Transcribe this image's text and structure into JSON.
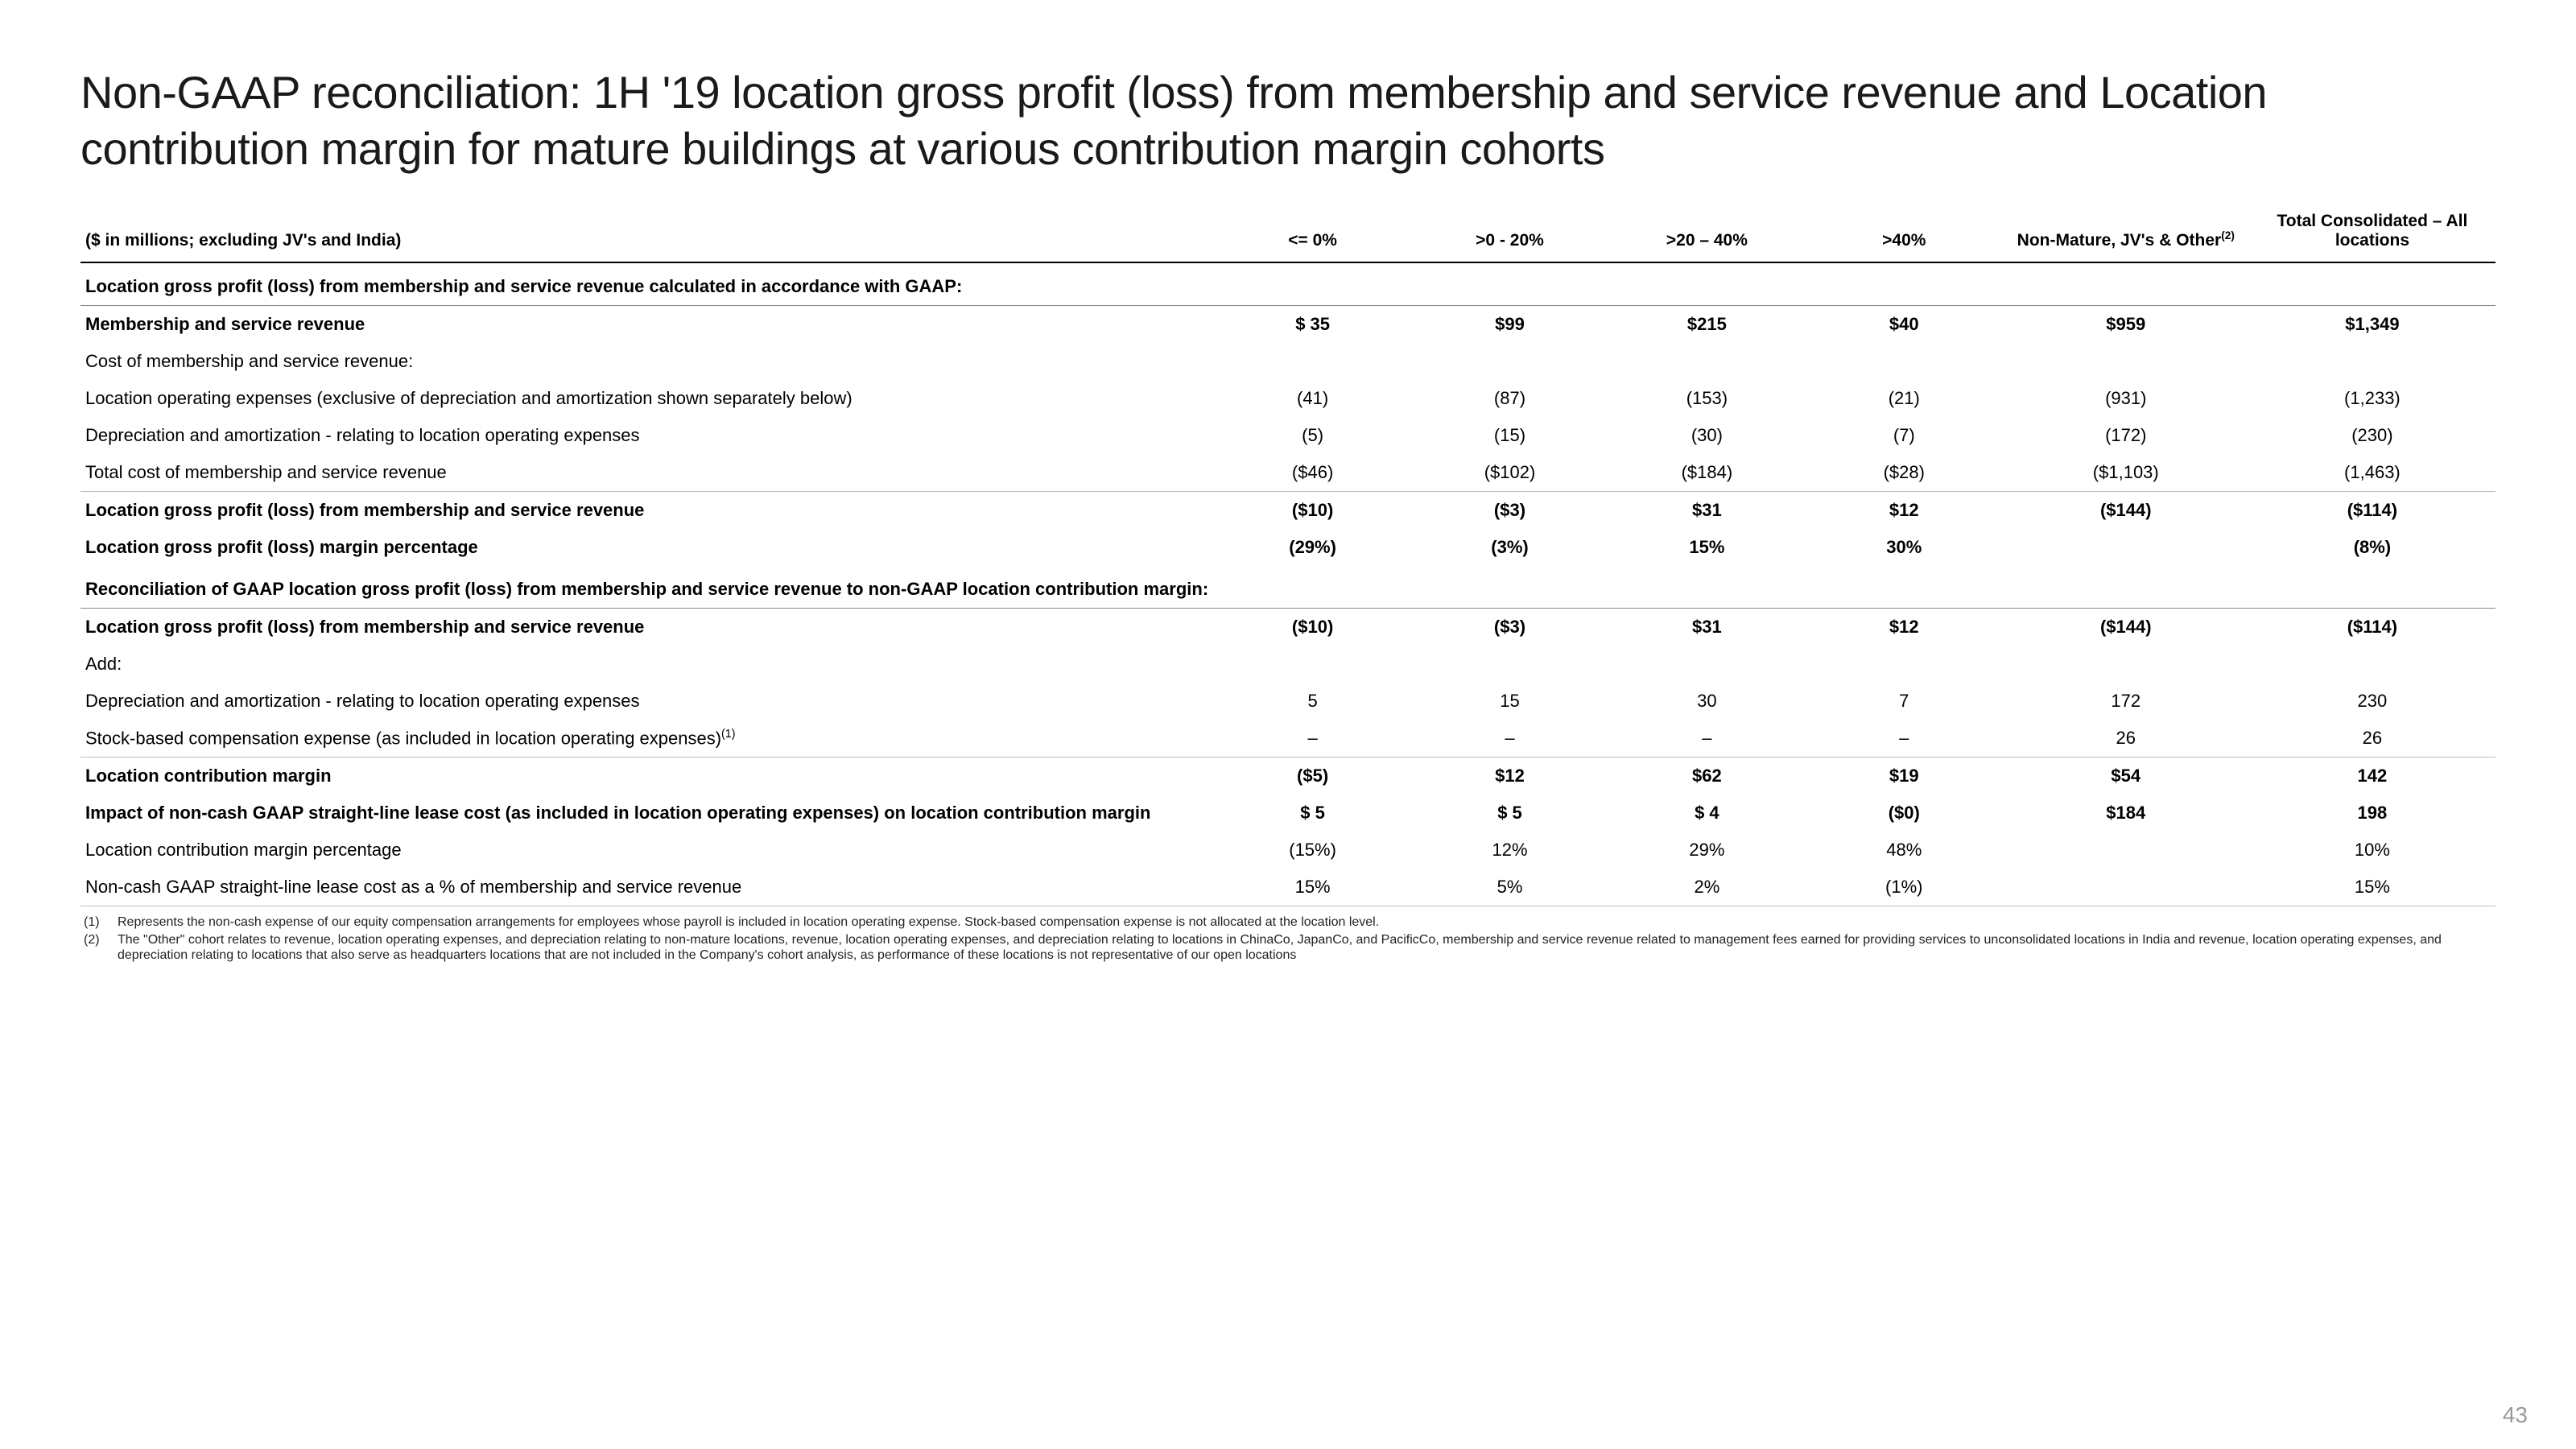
{
  "title": "Non-GAAP reconciliation: 1H '19 location gross profit (loss) from membership and service revenue and Location contribution margin for mature buildings at various contribution margin cohorts",
  "subtitle": "($ in millions; excluding JV's and India)",
  "page_number": "43",
  "columns": [
    "<= 0%",
    ">0 -  20%",
    ">20 – 40%",
    ">40%",
    "Non-Mature, JV's & Other",
    "Total Consolidated – All locations"
  ],
  "col_sup": [
    "",
    "",
    "",
    "",
    "(2)",
    ""
  ],
  "sections": {
    "gaap_header": "Location gross profit (loss) from membership and service revenue calculated in accordance with GAAP:",
    "reconcile_header": "Reconciliation of GAAP location gross profit (loss) from membership and service revenue to non-GAAP location contribution margin:"
  },
  "rows": {
    "rev": {
      "label": "Membership and service revenue",
      "vals": [
        "$ 35",
        "$99",
        "$215",
        "$40",
        "$959",
        "$1,349"
      ]
    },
    "cost_head": {
      "label": "Cost of membership and service revenue:"
    },
    "opex": {
      "label": "Location operating expenses (exclusive of depreciation and amortization shown separately below)",
      "vals": [
        "(41)",
        "(87)",
        "(153)",
        "(21)",
        "(931)",
        "(1,233)"
      ]
    },
    "da": {
      "label": "Depreciation and amortization - relating to location operating expenses",
      "vals": [
        "(5)",
        "(15)",
        "(30)",
        "(7)",
        "(172)",
        "(230)"
      ]
    },
    "tot_cost": {
      "label": "Total cost of membership and service revenue",
      "vals": [
        "($46)",
        "($102)",
        "($184)",
        "($28)",
        "($1,103)",
        "(1,463)"
      ]
    },
    "gp": {
      "label": "Location gross profit (loss) from membership and service revenue",
      "vals": [
        "($10)",
        "($3)",
        "$31",
        "$12",
        "($144)",
        "($114)"
      ]
    },
    "gp_pct": {
      "label": "Location gross profit (loss) margin percentage",
      "vals": [
        "(29%)",
        "(3%)",
        "15%",
        "30%",
        "",
        "(8%)"
      ]
    },
    "gp2": {
      "label": "Location gross profit (loss) from membership and service revenue",
      "vals": [
        "($10)",
        "($3)",
        "$31",
        "$12",
        "($144)",
        "($114)"
      ]
    },
    "add": {
      "label": "Add:"
    },
    "da_add": {
      "label": "Depreciation and amortization - relating to location operating expenses",
      "vals": [
        "5",
        "15",
        "30",
        "7",
        "172",
        "230"
      ]
    },
    "sbc": {
      "label": "Stock-based compensation expense (as included in location operating expenses)",
      "sup": "(1)",
      "vals": [
        "–",
        "–",
        "–",
        "–",
        "26",
        "26"
      ]
    },
    "lcm": {
      "label": "Location contribution margin",
      "vals": [
        "($5)",
        "$12",
        "$62",
        "$19",
        "$54",
        "142"
      ]
    },
    "impact": {
      "label": "Impact of non-cash GAAP straight-line lease cost (as included in location operating expenses) on location contribution margin",
      "vals": [
        "$ 5",
        "$ 5",
        "$ 4",
        "($0)",
        "$184",
        "198"
      ]
    },
    "lcm_pct": {
      "label": "Location contribution margin percentage",
      "vals": [
        "(15%)",
        "12%",
        "29%",
        "48%",
        "",
        "10%"
      ]
    },
    "sl_pct": {
      "label": "Non-cash GAAP straight-line lease cost as a % of membership and service revenue",
      "vals": [
        "15%",
        "5%",
        "2%",
        "(1%)",
        "",
        "15%"
      ]
    }
  },
  "footnotes": [
    {
      "num": "(1)",
      "text": "Represents the non-cash expense of our equity compensation arrangements for employees whose payroll is included in location operating expense. Stock-based compensation expense is not allocated at the location level."
    },
    {
      "num": "(2)",
      "text": "The \"Other\" cohort relates to revenue, location operating expenses, and depreciation relating  to non-mature locations, revenue, location operating expenses, and depreciation relating  to locations in ChinaCo, JapanCo, and PacificCo, membership and service revenue related to management fees earned for providing services to unconsolidated locations in India and revenue, location operating expenses, and depreciation relating to locations that also serve as headquarters locations that are not included in the Company's cohort analysis, as performance of these locations is not representative of our open locations"
    }
  ]
}
